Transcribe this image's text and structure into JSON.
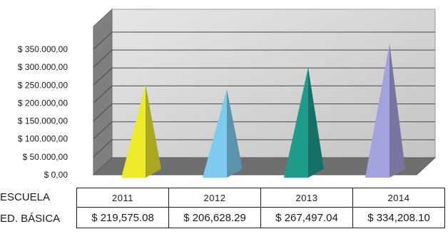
{
  "chart_data": {
    "type": "bar",
    "bar_shape": "pyramid",
    "categories": [
      "2011",
      "2012",
      "2013",
      "2014"
    ],
    "series": [
      {
        "name": "ED. BÁSICA",
        "values": [
          219575.08,
          206628.29,
          267497.04,
          334208.1
        ],
        "value_labels": [
          "$ 219,575.08",
          "$ 206,628.29",
          "$ 267,497.04",
          "$ 334,208.10"
        ]
      }
    ],
    "colors": [
      "#ecea2a",
      "#7ecbef",
      "#1f9c8c",
      "#a4a2dc"
    ],
    "ylim": [
      0,
      350000
    ],
    "y_ticks": [
      0,
      50000,
      100000,
      150000,
      200000,
      250000,
      300000,
      350000
    ],
    "y_tick_labels": [
      "$ 0,00",
      "$ 50.000,00",
      "$ 100.000,00",
      "$ 150.000,00",
      "$ 200.000,00",
      "$ 250.000,00",
      "$ 300.000,00",
      "$ 350.000,00"
    ],
    "grid": true,
    "table_row_labels": [
      "ESCUELA",
      "ED. BÁSICA"
    ]
  }
}
